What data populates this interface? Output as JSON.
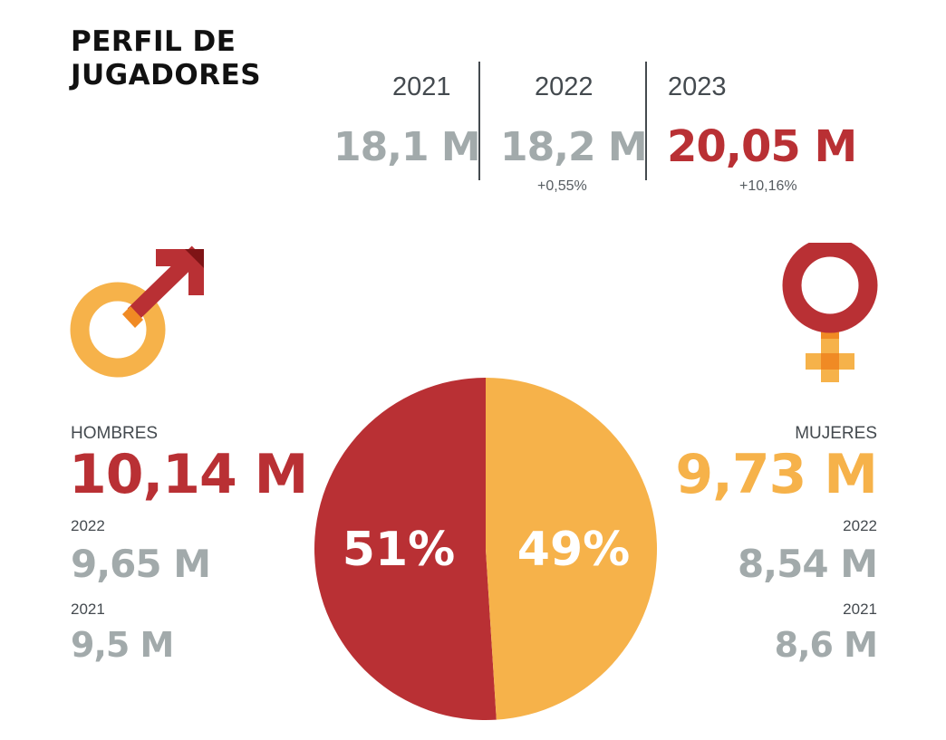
{
  "title_line1": "PERFIL DE",
  "title_line2": "JUGADORES",
  "colors": {
    "hombres": "#b93034",
    "mujeres": "#f6b24a",
    "neutral": "#a2aaab"
  },
  "totals": [
    {
      "year": "2021",
      "value": "18,1 M",
      "change": ""
    },
    {
      "year": "2022",
      "value": "18,2 M",
      "change": "+0,55%"
    },
    {
      "year": "2023",
      "value": "20,05 M",
      "change": "+10,16%"
    }
  ],
  "hombres": {
    "icon": "male-symbol-icon",
    "label": "HOMBRES",
    "value": "10,14 M",
    "history": [
      {
        "year": "2022",
        "value": "9,65 M"
      },
      {
        "year": "2021",
        "value": "9,5 M"
      }
    ]
  },
  "mujeres": {
    "icon": "female-symbol-icon",
    "label": "MUJERES",
    "value": "9,73 M",
    "history": [
      {
        "year": "2022",
        "value": "8,54 M"
      },
      {
        "year": "2021",
        "value": "8,6 M"
      }
    ]
  },
  "chart_data": {
    "type": "pie",
    "title": "",
    "categories": [
      "HOMBRES",
      "MUJERES"
    ],
    "values": [
      51,
      49
    ],
    "labels": [
      "51%",
      "49%"
    ],
    "colors": [
      "#b93034",
      "#f6b24a"
    ]
  }
}
